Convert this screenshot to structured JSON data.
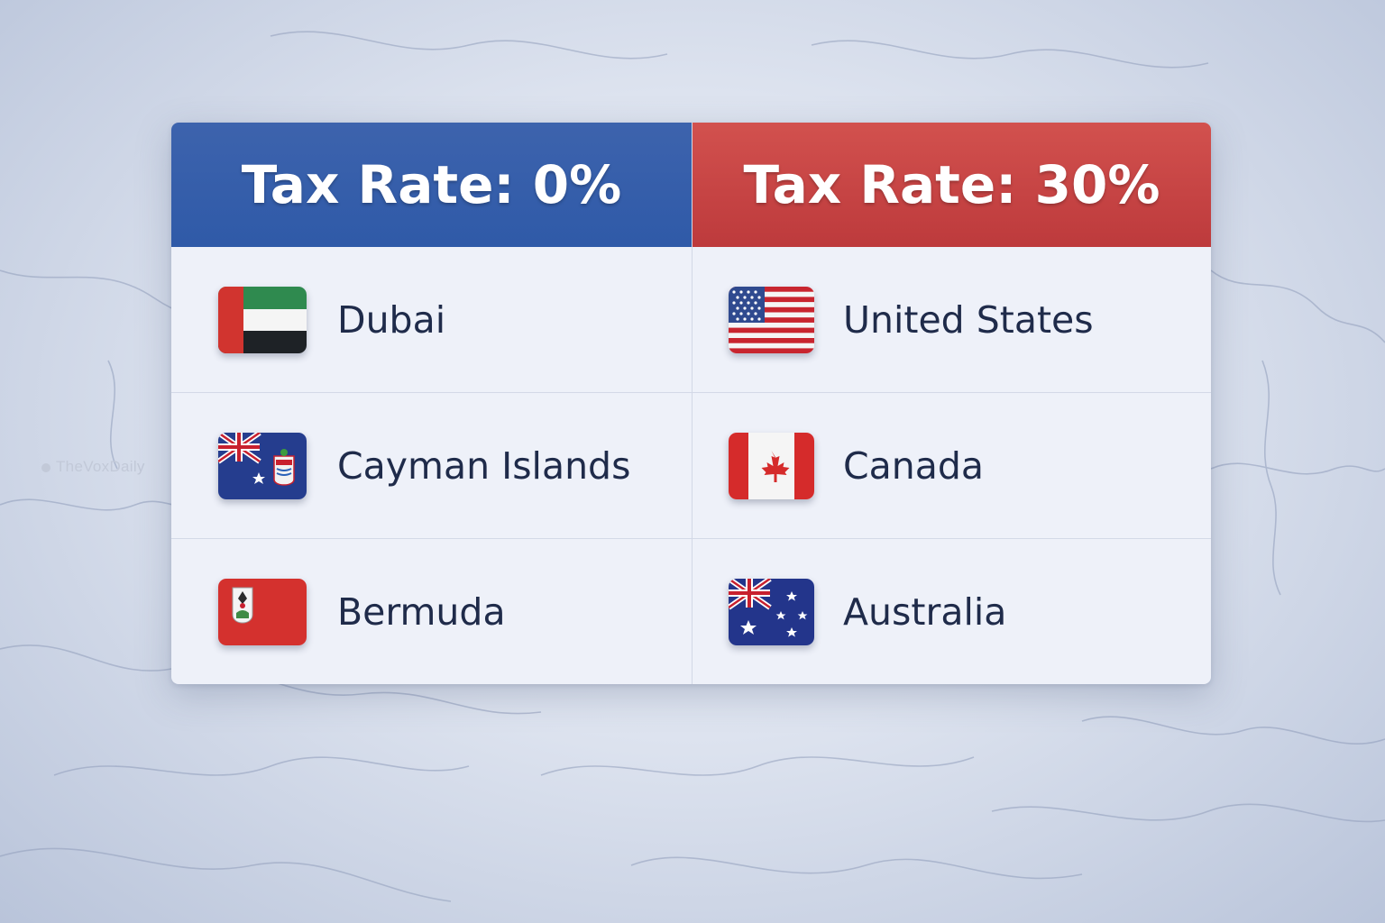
{
  "watermark": "TheVoxDaily",
  "columns": [
    {
      "header": "Tax Rate: 0%",
      "header_color": "#3460ab",
      "rows": [
        {
          "country": "Dubai",
          "flag_icon": "uae-flag-icon"
        },
        {
          "country": "Cayman Islands",
          "flag_icon": "cayman-islands-flag-icon"
        },
        {
          "country": "Bermuda",
          "flag_icon": "bermuda-flag-icon"
        }
      ]
    },
    {
      "header": "Tax Rate: 30%",
      "header_color": "#c64443",
      "rows": [
        {
          "country": "United States",
          "flag_icon": "usa-flag-icon"
        },
        {
          "country": "Canada",
          "flag_icon": "canada-flag-icon"
        },
        {
          "country": "Australia",
          "flag_icon": "australia-flag-icon"
        }
      ]
    }
  ]
}
